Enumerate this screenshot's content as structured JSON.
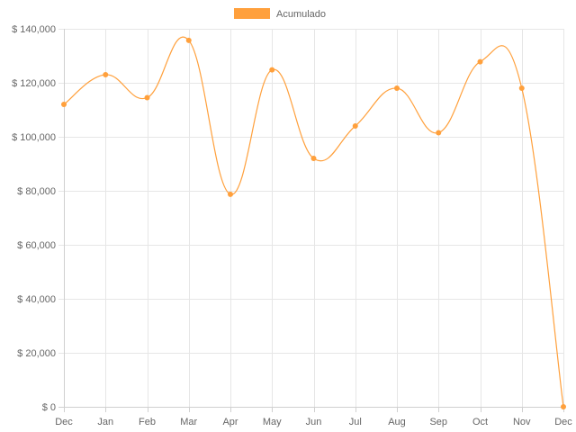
{
  "chart_data": {
    "type": "line",
    "categories": [
      "Dec",
      "Jan",
      "Feb",
      "Mar",
      "Apr",
      "May",
      "Jun",
      "Jul",
      "Aug",
      "Sep",
      "Oct",
      "Nov",
      "Dec"
    ],
    "series": [
      {
        "name": "Acumulado",
        "values": [
          112000,
          123000,
          114500,
          135700,
          78700,
          124800,
          92000,
          104000,
          118000,
          101500,
          127800,
          118000,
          0
        ]
      }
    ],
    "ylim": [
      0,
      140000
    ],
    "yticks": [
      0,
      20000,
      40000,
      60000,
      80000,
      100000,
      120000,
      140000
    ],
    "ytick_labels": [
      "$ 0",
      "$ 20,000",
      "$ 40,000",
      "$ 60,000",
      "$ 80,000",
      "$ 100,000",
      "$ 120,000",
      "$ 140,000"
    ],
    "grid": true,
    "legend_position": "top-center",
    "series_color": "#ffa03c",
    "title": "",
    "xlabel": "",
    "ylabel": ""
  }
}
